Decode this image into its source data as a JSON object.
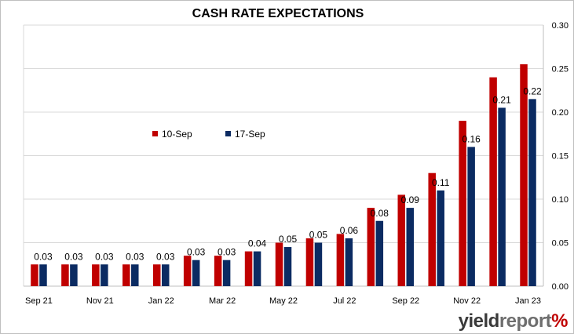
{
  "chart_data": {
    "type": "bar",
    "title": "CASH RATE EXPECTATIONS",
    "categories": [
      "Sep 21",
      "Oct 21",
      "Nov 21",
      "Dec 21",
      "Jan 22",
      "Feb 22",
      "Mar 22",
      "Apr 22",
      "May 22",
      "Jun 22",
      "Jul 22",
      "Aug 22",
      "Sep 22",
      "Oct 22",
      "Nov 22",
      "Dec 22",
      "Jan 23"
    ],
    "x_tick_labels": [
      "Sep 21",
      "Nov 21",
      "Jan 22",
      "Mar 22",
      "May 22",
      "Jul 22",
      "Sep 22",
      "Nov 22",
      "Jan 23"
    ],
    "series": [
      {
        "name": "10-Sep",
        "color": "#c00000",
        "values": [
          0.025,
          0.025,
          0.025,
          0.025,
          0.025,
          0.035,
          0.035,
          0.04,
          0.05,
          0.055,
          0.06,
          0.09,
          0.105,
          0.13,
          0.19,
          0.24,
          0.255
        ]
      },
      {
        "name": "17-Sep",
        "color": "#0b2b62",
        "values": [
          0.025,
          0.025,
          0.025,
          0.025,
          0.025,
          0.03,
          0.03,
          0.04,
          0.045,
          0.05,
          0.055,
          0.075,
          0.09,
          0.11,
          0.16,
          0.205,
          0.215
        ]
      }
    ],
    "data_labels": [
      "0.03",
      "0.03",
      "0.03",
      "0.03",
      "0.03",
      "0.03",
      "0.03",
      "0.04",
      "0.05",
      "0.05",
      "0.06",
      "0.08",
      "0.09",
      "0.11",
      "0.16",
      "0.21",
      "0.22"
    ],
    "ylim": [
      0,
      0.3
    ],
    "y_ticks": [
      "0.00",
      "0.05",
      "0.10",
      "0.15",
      "0.20",
      "0.25",
      "0.30"
    ],
    "y_axis_position": "right",
    "grid": true,
    "legend_position": "inside-upper-left"
  },
  "branding": {
    "part1": "yield",
    "part2": "report",
    "part3": "%"
  }
}
